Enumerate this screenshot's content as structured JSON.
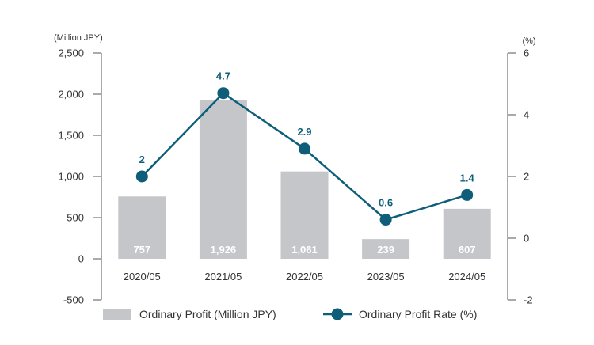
{
  "chart_data": {
    "type": "bar+line",
    "categories": [
      "2020/05",
      "2021/05",
      "2022/05",
      "2023/05",
      "2024/05"
    ],
    "series": [
      {
        "name": "Ordinary Profit (Million JPY)",
        "type": "bar",
        "axis": "left",
        "values": [
          757,
          1926,
          1061,
          239,
          607
        ],
        "labels": [
          "757",
          "1,926",
          "1,061",
          "239",
          "607"
        ]
      },
      {
        "name": "Ordinary Profit Rate (%)",
        "type": "line",
        "axis": "right",
        "values": [
          2,
          4.7,
          2.9,
          0.6,
          1.4
        ],
        "labels": [
          "2",
          "4.7",
          "2.9",
          "0.6",
          "1.4"
        ]
      }
    ],
    "left_axis": {
      "unit": "(Million JPY)",
      "range": [
        -500,
        2500
      ],
      "ticks": [
        -500,
        0,
        500,
        1000,
        1500,
        2000,
        2500
      ],
      "tick_labels": [
        "-500",
        "0",
        "500",
        "1,000",
        "1,500",
        "2,000",
        "2,500"
      ]
    },
    "right_axis": {
      "unit": "(%)",
      "range": [
        -2,
        6
      ],
      "ticks": [
        -2,
        0,
        2,
        4,
        6
      ],
      "tick_labels": [
        "-2",
        "0",
        "2",
        "4",
        "6"
      ]
    },
    "colors": {
      "bar": "#c4c6c9",
      "line": "#0e5e7a",
      "negative_tick": "#c0392b",
      "axis": "#555555"
    },
    "legend": {
      "placement": "bottom"
    },
    "grid": false
  }
}
